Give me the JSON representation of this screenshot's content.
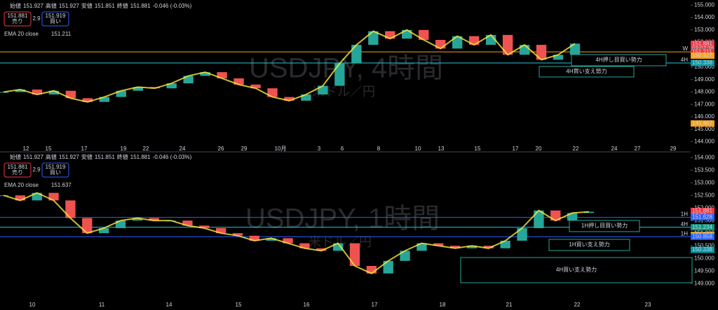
{
  "panels": [
    {
      "header": {
        "open_label": "始値",
        "open": "151.927",
        "high_label": "高値",
        "high": "151.927",
        "low_label": "安値",
        "low": "151.851",
        "close_label": "終値",
        "close": "151.881",
        "change": "-0.046 (-0.03%)"
      },
      "sell": {
        "price": "151.881",
        "label": "売り"
      },
      "spread": "2.9",
      "buy": {
        "price": "151.919",
        "label": "買い"
      },
      "ema": {
        "label": "EMA 20 close",
        "value": "151.211"
      },
      "watermark": "USDJPY, 4時間",
      "watermark_sub": "米ドル／円",
      "ylim": [
        143.8,
        155.3
      ],
      "yticks": [
        {
          "value": 155,
          "label": "155.000"
        },
        {
          "value": 154,
          "label": "154.000"
        },
        {
          "value": 153,
          "label": "153.000"
        },
        {
          "value": 152,
          "label": "152.000"
        },
        {
          "value": 151,
          "label": "151.000"
        },
        {
          "value": 150,
          "label": "150.000"
        },
        {
          "value": 149,
          "label": "149.000"
        },
        {
          "value": 148,
          "label": "148.000"
        },
        {
          "value": 147,
          "label": "147.000"
        },
        {
          "value": 146,
          "label": "146.000"
        },
        {
          "value": 145,
          "label": "145.000"
        },
        {
          "value": 144,
          "label": "144.000"
        }
      ],
      "xticks": [
        "12",
        "15",
        "17",
        "19",
        "22",
        "24",
        "26",
        "29",
        "10月",
        "3",
        "6",
        "8",
        "10",
        "13",
        "15",
        "17",
        "20",
        "22",
        "24",
        "27",
        "29"
      ],
      "close_series": [
        148.0,
        148.2,
        147.8,
        148.1,
        147.5,
        147.2,
        147.6,
        148.1,
        148.4,
        148.3,
        148.7,
        149.3,
        149.6,
        149.1,
        148.6,
        148.3,
        147.6,
        147.3,
        147.8,
        148.5,
        150.3,
        151.8,
        152.9,
        152.3,
        153.0,
        152.2,
        151.5,
        152.5,
        151.8,
        152.6,
        151.0,
        151.8,
        150.6,
        151.0,
        151.9
      ],
      "price_tags": [
        {
          "value": 151.881,
          "label": "151.881",
          "sub": "03:07:36",
          "color": "#f23645"
        },
        {
          "value": 151.234,
          "label": "151.234",
          "color": "#089981"
        },
        {
          "value": 151.211,
          "label": "151.211",
          "color": "#f23645"
        },
        {
          "value": 150.927,
          "label": "150.927",
          "color": "#f7a21b"
        },
        {
          "value": 150.338,
          "label": "150.338",
          "color": "#0097a7"
        },
        {
          "value": 145.467,
          "label": "145.467",
          "color": "#f7a21b"
        }
      ],
      "lines": [
        {
          "value": 151.234,
          "label": "W",
          "color": "#f7a21b"
        },
        {
          "value": 150.338,
          "label": "4H",
          "color": "#26c6da"
        }
      ],
      "boxes": [
        "4H押し目買い勢力",
        "4H買い支え勢力"
      ]
    },
    {
      "header": {
        "open_label": "始値",
        "open": "151.927",
        "high_label": "高値",
        "high": "151.927",
        "low_label": "安値",
        "low": "151.851",
        "close_label": "終値",
        "close": "151.881",
        "change": "-0.046 (-0.03%)"
      },
      "sell": {
        "price": "151.881",
        "label": "売り"
      },
      "spread": "2.9",
      "buy": {
        "price": "151.919",
        "label": "買い"
      },
      "ema": {
        "label": "EMA 20 close",
        "value": "151.637"
      },
      "watermark": "USDJPY, 1時間",
      "watermark_sub": "米ドル／円",
      "ylim": [
        148.7,
        154.2
      ],
      "yticks": [
        {
          "value": 154,
          "label": "154.000"
        },
        {
          "value": 153.5,
          "label": "153.500"
        },
        {
          "value": 153,
          "label": "153.000"
        },
        {
          "value": 152.5,
          "label": "152.500"
        },
        {
          "value": 152,
          "label": "152.000"
        },
        {
          "value": 151.5,
          "label": "151.500"
        },
        {
          "value": 151,
          "label": "151.000"
        },
        {
          "value": 150.5,
          "label": "150.500"
        },
        {
          "value": 150,
          "label": "150.000"
        },
        {
          "value": 149.5,
          "label": "149.500"
        },
        {
          "value": 149,
          "label": "149.000"
        }
      ],
      "xticks": [
        "10",
        "11",
        "14",
        "15",
        "16",
        "17",
        "18",
        "21",
        "22",
        "23"
      ],
      "close_series": [
        152.5,
        152.3,
        152.6,
        152.3,
        151.6,
        151.0,
        151.2,
        151.5,
        151.6,
        151.5,
        151.5,
        151.3,
        151.2,
        151.0,
        150.9,
        150.7,
        150.8,
        150.6,
        150.4,
        150.3,
        150.6,
        149.7,
        149.4,
        149.9,
        150.3,
        150.6,
        150.5,
        150.4,
        150.5,
        150.4,
        150.7,
        151.2,
        151.9,
        151.5,
        151.8,
        151.85
      ],
      "price_tags": [
        {
          "value": 151.881,
          "label": "151.881",
          "sub": "07:37",
          "color": "#f23645"
        },
        {
          "value": 151.637,
          "label": "151.637",
          "color": "#7e57c2"
        },
        {
          "value": 151.628,
          "label": "151.628",
          "color": "#2962ff"
        },
        {
          "value": 151.234,
          "label": "151.234",
          "color": "#089981"
        },
        {
          "value": 150.927,
          "label": "150.927",
          "color": "#f7a21b"
        },
        {
          "value": 150.858,
          "label": "150.858",
          "color": "#2962ff"
        },
        {
          "value": 150.338,
          "label": "150.338",
          "color": "#0097a7"
        }
      ],
      "lines": [
        {
          "value": 151.628,
          "label": "1H",
          "color": "#2962ff"
        },
        {
          "value": 151.234,
          "label": "4H",
          "color": "#26c6da"
        },
        {
          "value": 150.858,
          "label": "1H",
          "color": "#2962ff"
        }
      ],
      "boxes": [
        "1H押し目買い勢力",
        "1H買い支え勢力",
        "4H買い支え勢力"
      ]
    }
  ]
}
